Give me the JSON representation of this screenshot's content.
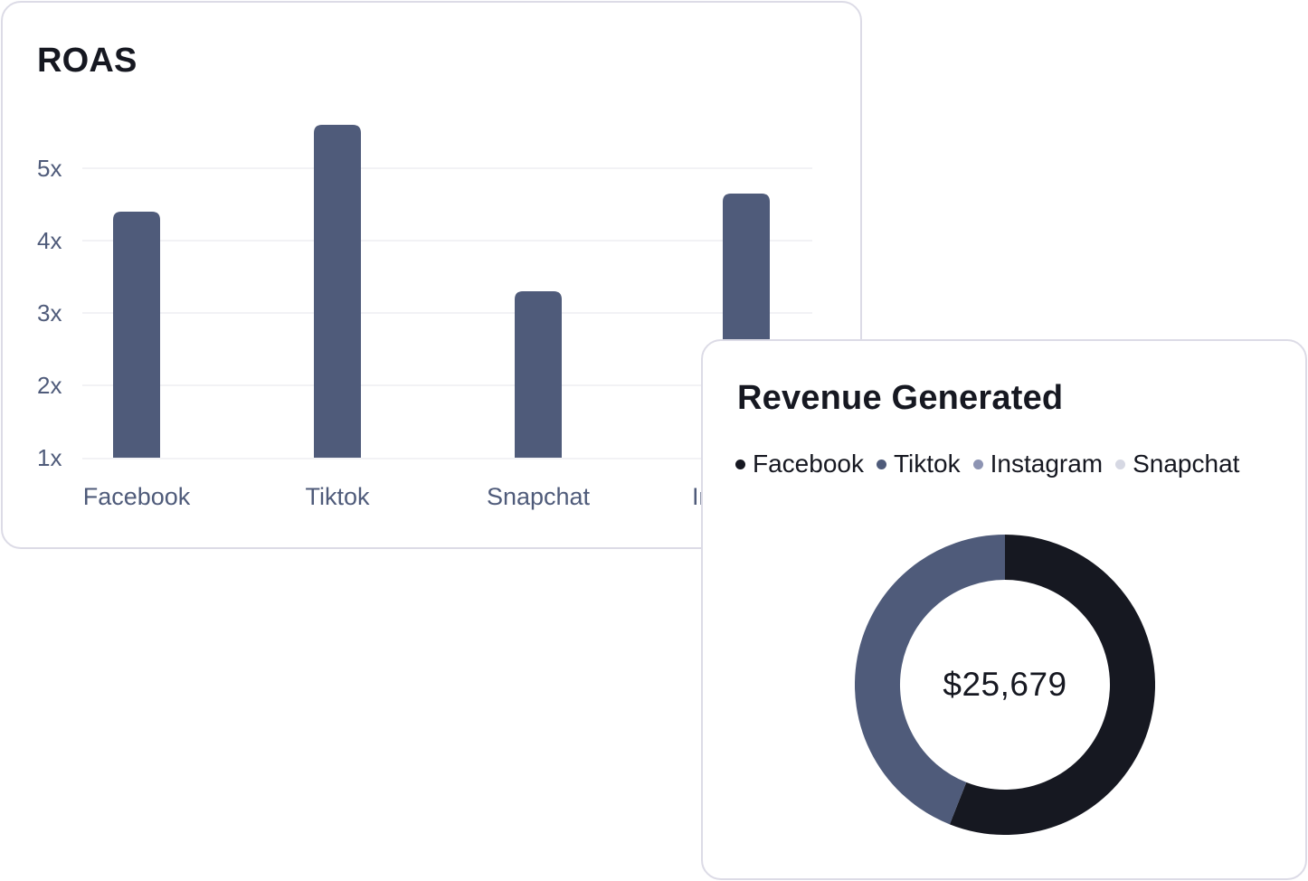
{
  "chart_data": [
    {
      "type": "bar",
      "title": "ROAS",
      "categories": [
        "Facebook",
        "Tiktok",
        "Snapchat",
        "Instagram"
      ],
      "values": [
        4.4,
        5.6,
        3.3,
        4.65
      ],
      "y_ticks": [
        "1x",
        "2x",
        "3x",
        "4x",
        "5x"
      ],
      "ylim": [
        1,
        5.6
      ],
      "grid": true,
      "color": "#4f5b7a"
    },
    {
      "type": "pie",
      "title": "Revenue Generated",
      "center_label": "$25,679",
      "legend_position": "top",
      "series": [
        {
          "name": "Facebook",
          "value": 56,
          "color": "#161821"
        },
        {
          "name": "Tiktok",
          "value": 44,
          "color": "#4f5b7a"
        },
        {
          "name": "Instagram",
          "value": 0,
          "color": "#8d94b3"
        },
        {
          "name": "Snapchat",
          "value": 0,
          "color": "#d6d8e3"
        }
      ]
    }
  ]
}
